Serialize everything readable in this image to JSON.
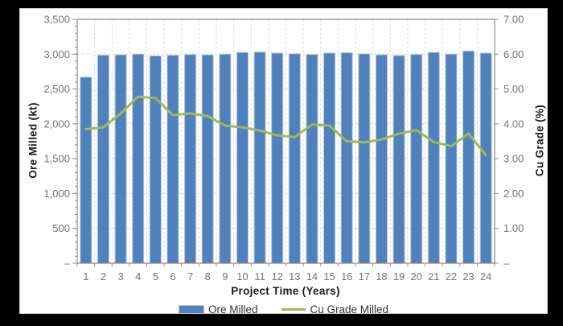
{
  "frame": {
    "background": "#000000",
    "panel_background": "#ffffff"
  },
  "chart_data": {
    "type": "bar+line",
    "xlabel": "Project Time (Years)",
    "ylabel_left": "Ore Milled (kt)",
    "ylabel_right": "Cu Grade (%)",
    "categories": [
      "1",
      "2",
      "3",
      "4",
      "5",
      "6",
      "7",
      "8",
      "9",
      "10",
      "11",
      "12",
      "13",
      "14",
      "15",
      "16",
      "17",
      "18",
      "19",
      "20",
      "21",
      "22",
      "23",
      "24"
    ],
    "bar_series": {
      "name": "Ore Milled",
      "axis": "left",
      "color": "#4e81bd",
      "border_color": "#b9c3cf",
      "values": [
        2670,
        2985,
        2990,
        3000,
        2975,
        2985,
        2995,
        2990,
        3000,
        3025,
        3030,
        3015,
        3005,
        2995,
        3015,
        3020,
        3005,
        2990,
        2980,
        2995,
        3025,
        3000,
        3045,
        3015
      ]
    },
    "line_series": {
      "name": "Cu Grade Milled",
      "axis": "right",
      "color": "#9bbb59",
      "values": [
        3.85,
        3.9,
        4.3,
        4.78,
        4.74,
        4.25,
        4.3,
        4.22,
        3.95,
        3.9,
        3.81,
        3.67,
        3.62,
        3.98,
        3.95,
        3.5,
        3.47,
        3.55,
        3.72,
        3.82,
        3.48,
        3.36,
        3.72,
        3.1
      ]
    },
    "left_axis": {
      "min": 0,
      "max": 3500,
      "major_step": 500,
      "minor_step": 100,
      "tick_labels": [
        "–",
        "500",
        "1,000",
        "1,500",
        "2,000",
        "2,500",
        "3,000",
        "3,500"
      ]
    },
    "right_axis": {
      "min": 0,
      "max": 7,
      "major_step": 1,
      "tick_labels": [
        "–",
        "1.00",
        "2.00",
        "3.00",
        "4.00",
        "5.00",
        "6.00",
        "7.00"
      ]
    },
    "grid": {
      "horizontal": true,
      "vertical": true,
      "style": "dashed",
      "color": "#d9d9d9"
    },
    "axis_line_color": "#8c8c8c",
    "tick_label_color": "#737373",
    "legend_position": "bottom"
  }
}
